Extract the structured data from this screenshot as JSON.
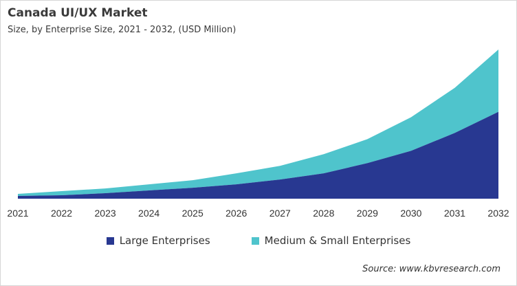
{
  "title": "Canada UI/UX Market",
  "subtitle": "Size, by Enterprise Size, 2021 - 2032, (USD Million)",
  "source": "Source: www.kbvresearch.com",
  "colors": {
    "large": "#283891",
    "medium": "#4fc4cc"
  },
  "chart_data": {
    "type": "area",
    "stacked": true,
    "title": "Canada UI/UX Market",
    "subtitle": "Size, by Enterprise Size, 2021 - 2032, (USD Million)",
    "categories": [
      "2021",
      "2022",
      "2023",
      "2024",
      "2025",
      "2026",
      "2027",
      "2028",
      "2029",
      "2030",
      "2031",
      "2032"
    ],
    "series": [
      {
        "name": "Large Enterprises",
        "values": [
          4,
          5,
          8,
          12,
          16,
          21,
          28,
          37,
          52,
          70,
          96,
          127
        ]
      },
      {
        "name": "Medium & Small Enterprises",
        "values": [
          3,
          6,
          7,
          9,
          11,
          16,
          20,
          28,
          35,
          49,
          66,
          91
        ]
      }
    ],
    "values_note_relative": true,
    "ylim": [
      0,
      220
    ],
    "y_axis_shown": false,
    "grid": false,
    "legend": "bottom"
  }
}
